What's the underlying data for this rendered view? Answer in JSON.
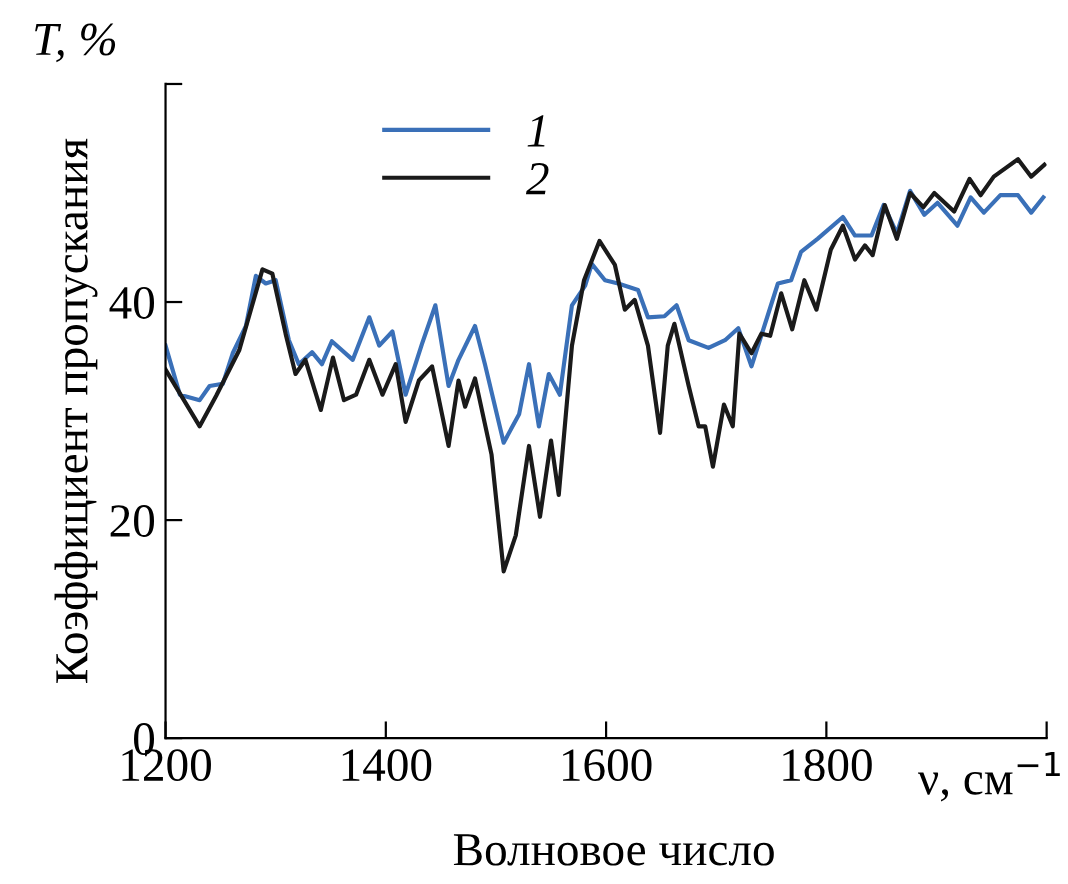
{
  "chart_data": {
    "type": "line",
    "xlabel": "ν, см$^{−1}$",
    "ylabel": "Коэффициент пропускания",
    "annotations": [
      "T, %",
      "Волновое число"
    ],
    "xlim": [
      1200,
      2000
    ],
    "xticks": [
      1200,
      1400,
      1600,
      1800,
      {
        "value": 2000,
        "label": null
      }
    ],
    "ylim": [
      0,
      60
    ],
    "yticks": [
      0,
      20,
      40,
      {
        "value": 60,
        "label": null
      }
    ],
    "grid": false,
    "legend": "top left",
    "marker": "none",
    "line_style": "solid",
    "series": [
      {
        "name": "1",
        "color": "#3a70b8",
        "x": [
          1200,
          1213,
          1231,
          1240,
          1252,
          1261,
          1273,
          1282,
          1291,
          1300,
          1312,
          1321,
          1333,
          1342,
          1351,
          1370,
          1385,
          1394,
          1406,
          1418,
          1433,
          1445,
          1457,
          1466,
          1481,
          1490,
          1507,
          1521,
          1530,
          1539,
          1548,
          1558,
          1569,
          1581,
          1587,
          1599,
          1611,
          1629,
          1638,
          1653,
          1664,
          1675,
          1693,
          1708,
          1720,
          1732,
          1756,
          1768,
          1777,
          1792,
          1815,
          1826,
          1841,
          1852,
          1864,
          1876,
          1889,
          1901,
          1919,
          1931,
          1943,
          1958,
          1974,
          1986,
          1997
        ],
        "values": [
          36.0,
          31.5,
          31,
          32.3,
          32.5,
          35.3,
          37.8,
          42.4,
          41.7,
          42,
          36.5,
          34.3,
          35.4,
          34.3,
          36.4,
          34.7,
          38.6,
          36,
          37.3,
          31.5,
          36.2,
          39.7,
          32.3,
          34.7,
          37.8,
          34.3,
          27.1,
          29.7,
          34.3,
          28.6,
          33.4,
          31.5,
          39.7,
          41.5,
          43.5,
          42,
          41.7,
          41.1,
          38.6,
          38.7,
          39.7,
          36.5,
          35.8,
          36.5,
          37.6,
          34.1,
          41.7,
          42,
          44.6,
          45.8,
          47.8,
          46.1,
          46.1,
          48.9,
          46.3,
          50.2,
          48,
          49.1,
          47,
          49.6,
          48.2,
          49.8,
          49.8,
          48.2,
          49.6
        ]
      },
      {
        "name": "2",
        "color": "#1a1a1a",
        "x": [
          1200,
          1231,
          1246,
          1267,
          1288,
          1297,
          1309,
          1318,
          1327,
          1341,
          1352,
          1362,
          1373,
          1385,
          1397,
          1409,
          1418,
          1430,
          1442,
          1457,
          1466,
          1472,
          1481,
          1496,
          1507,
          1518,
          1530,
          1540,
          1550,
          1557,
          1569,
          1580,
          1594,
          1608,
          1617,
          1626,
          1638,
          1649,
          1656,
          1662,
          1675,
          1684,
          1690,
          1697,
          1707,
          1715,
          1721,
          1732,
          1741,
          1749,
          1759,
          1769,
          1780,
          1791,
          1804,
          1815,
          1826,
          1835,
          1842,
          1853,
          1864,
          1876,
          1888,
          1898,
          1916,
          1930,
          1940,
          1952,
          1974,
          1986,
          1998
        ],
        "values": [
          33.8,
          28.6,
          31.4,
          35.6,
          43,
          42.6,
          37.1,
          33.4,
          34.7,
          30.1,
          34.9,
          31,
          31.5,
          34.7,
          31.5,
          34.3,
          29,
          32.8,
          34.1,
          26.8,
          32.8,
          30.4,
          33,
          26,
          15.3,
          18.6,
          26.8,
          20.3,
          27.3,
          22.3,
          36,
          42,
          45.6,
          43.4,
          39.3,
          40.2,
          36,
          28,
          36,
          38,
          32.3,
          28.6,
          28.6,
          24.9,
          30.6,
          28.6,
          37.1,
          35.3,
          37.1,
          36.9,
          40.8,
          37.5,
          42,
          39.3,
          44.8,
          47,
          43.9,
          45.2,
          44.3,
          48.9,
          45.8,
          50,
          48.7,
          50,
          48.3,
          51.3,
          49.8,
          51.5,
          53.1,
          51.5,
          52.6
        ]
      }
    ]
  }
}
